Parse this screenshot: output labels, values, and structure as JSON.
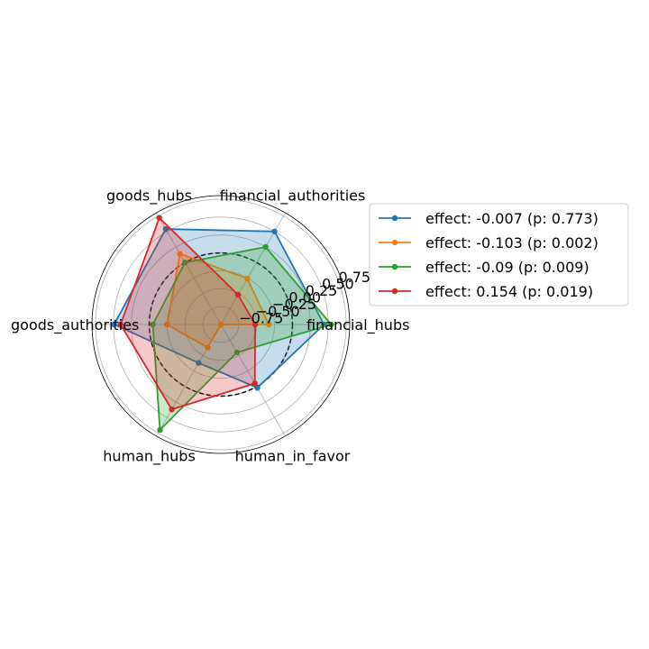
{
  "chart_data": {
    "type": "radar",
    "axes": [
      "financial_hubs",
      "financial_authorities",
      "goods_hubs",
      "goods_authorities",
      "human_hubs",
      "human_in_favor"
    ],
    "r_ticks": [
      -0.75,
      -0.5,
      -0.25,
      0.0,
      0.25,
      0.5,
      0.75
    ],
    "r_tick_labels": [
      "−0.75",
      "−0.50",
      "−0.25",
      "0.00",
      "0.25",
      "0.50",
      "0.75"
    ],
    "rlim": [
      -1.0,
      0.8
    ],
    "reference_circle_value": 0.0,
    "grid": true,
    "legend_placement": "right",
    "series": [
      {
        "name": "effect: -0.007 (p: 0.773)",
        "color": "#1f77b4",
        "values": [
          0.44,
          0.5,
          0.54,
          0.49,
          -0.38,
          0.02
        ]
      },
      {
        "name": "effect: -0.103 (p: 0.002)",
        "color": "#ff7f0e",
        "values": [
          -0.33,
          -0.26,
          0.14,
          -0.25,
          -0.63,
          -1.0
        ]
      },
      {
        "name": "effect: -0.09 (p: 0.009)",
        "color": "#2ca02c",
        "values": [
          0.54,
          0.25,
          0.0,
          -0.05,
          0.7,
          -0.55
        ]
      },
      {
        "name": "effect: 0.154 (p: 0.019)",
        "color": "#d62728",
        "values": [
          -0.52,
          -0.52,
          0.72,
          0.4,
          0.37,
          -0.05
        ]
      }
    ]
  }
}
